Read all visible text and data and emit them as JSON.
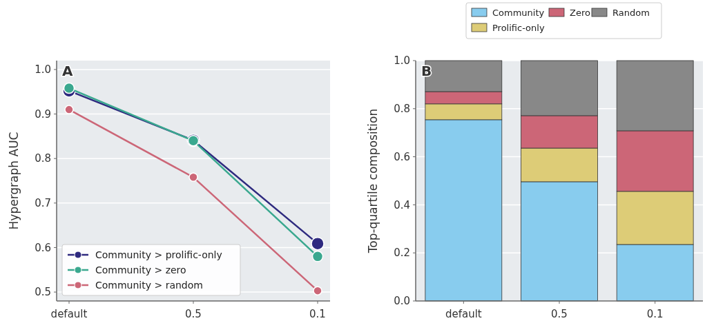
{
  "chart_data": [
    {
      "type": "line",
      "categories": [
        "default",
        "0.5",
        "0.1"
      ],
      "ylabel": "Hypergraph AUC",
      "ylim": [
        0.48,
        1.02
      ],
      "yticks": [
        {
          "value": 0.5,
          "label": "0.5"
        },
        {
          "value": 0.6,
          "label": "0.6"
        },
        {
          "value": 0.7,
          "label": "0.7"
        },
        {
          "value": 0.8,
          "label": "0.8"
        },
        {
          "value": 0.9,
          "label": "0.9"
        },
        {
          "value": 1.0,
          "label": "1.0"
        }
      ],
      "grid": "y",
      "legend": "bottom left",
      "marker": "circle",
      "annotations": [
        "A"
      ],
      "series": [
        {
          "name": "Community > prolific-only",
          "color": "#2e2a7f",
          "values": [
            0.952,
            0.841,
            0.609
          ]
        },
        {
          "name": "Community > zero",
          "color": "#3aa88f",
          "values": [
            0.958,
            0.84,
            0.58
          ]
        },
        {
          "name": "Community > random",
          "color": "#cc6677",
          "values": [
            0.91,
            0.758,
            0.503
          ]
        }
      ]
    },
    {
      "type": "bar",
      "stacked": true,
      "categories": [
        "default",
        "0.5",
        "0.1"
      ],
      "ylabel": "Top-quartile composition",
      "ylim": [
        0,
        1
      ],
      "yticks": [
        {
          "value": 0,
          "label": "0.0"
        },
        {
          "value": 0.2,
          "label": "0.2"
        },
        {
          "value": 0.4,
          "label": "0.4"
        },
        {
          "value": 0.6,
          "label": "0.6"
        },
        {
          "value": 0.8,
          "label": "0.8"
        },
        {
          "value": 1.0,
          "label": "1.0"
        }
      ],
      "grid": "y",
      "legend": "top",
      "annotations": [
        "B"
      ],
      "series": [
        {
          "name": "Community",
          "color": "#88ccee",
          "values": [
            0.754,
            0.496,
            0.235
          ]
        },
        {
          "name": "Prolific-only",
          "color": "#ddcc77",
          "values": [
            0.066,
            0.14,
            0.221
          ]
        },
        {
          "name": "Zero",
          "color": "#cc6677",
          "values": [
            0.051,
            0.135,
            0.252
          ]
        },
        {
          "name": "Random",
          "color": "#888888",
          "values": [
            0.129,
            0.229,
            0.292
          ]
        }
      ]
    }
  ]
}
